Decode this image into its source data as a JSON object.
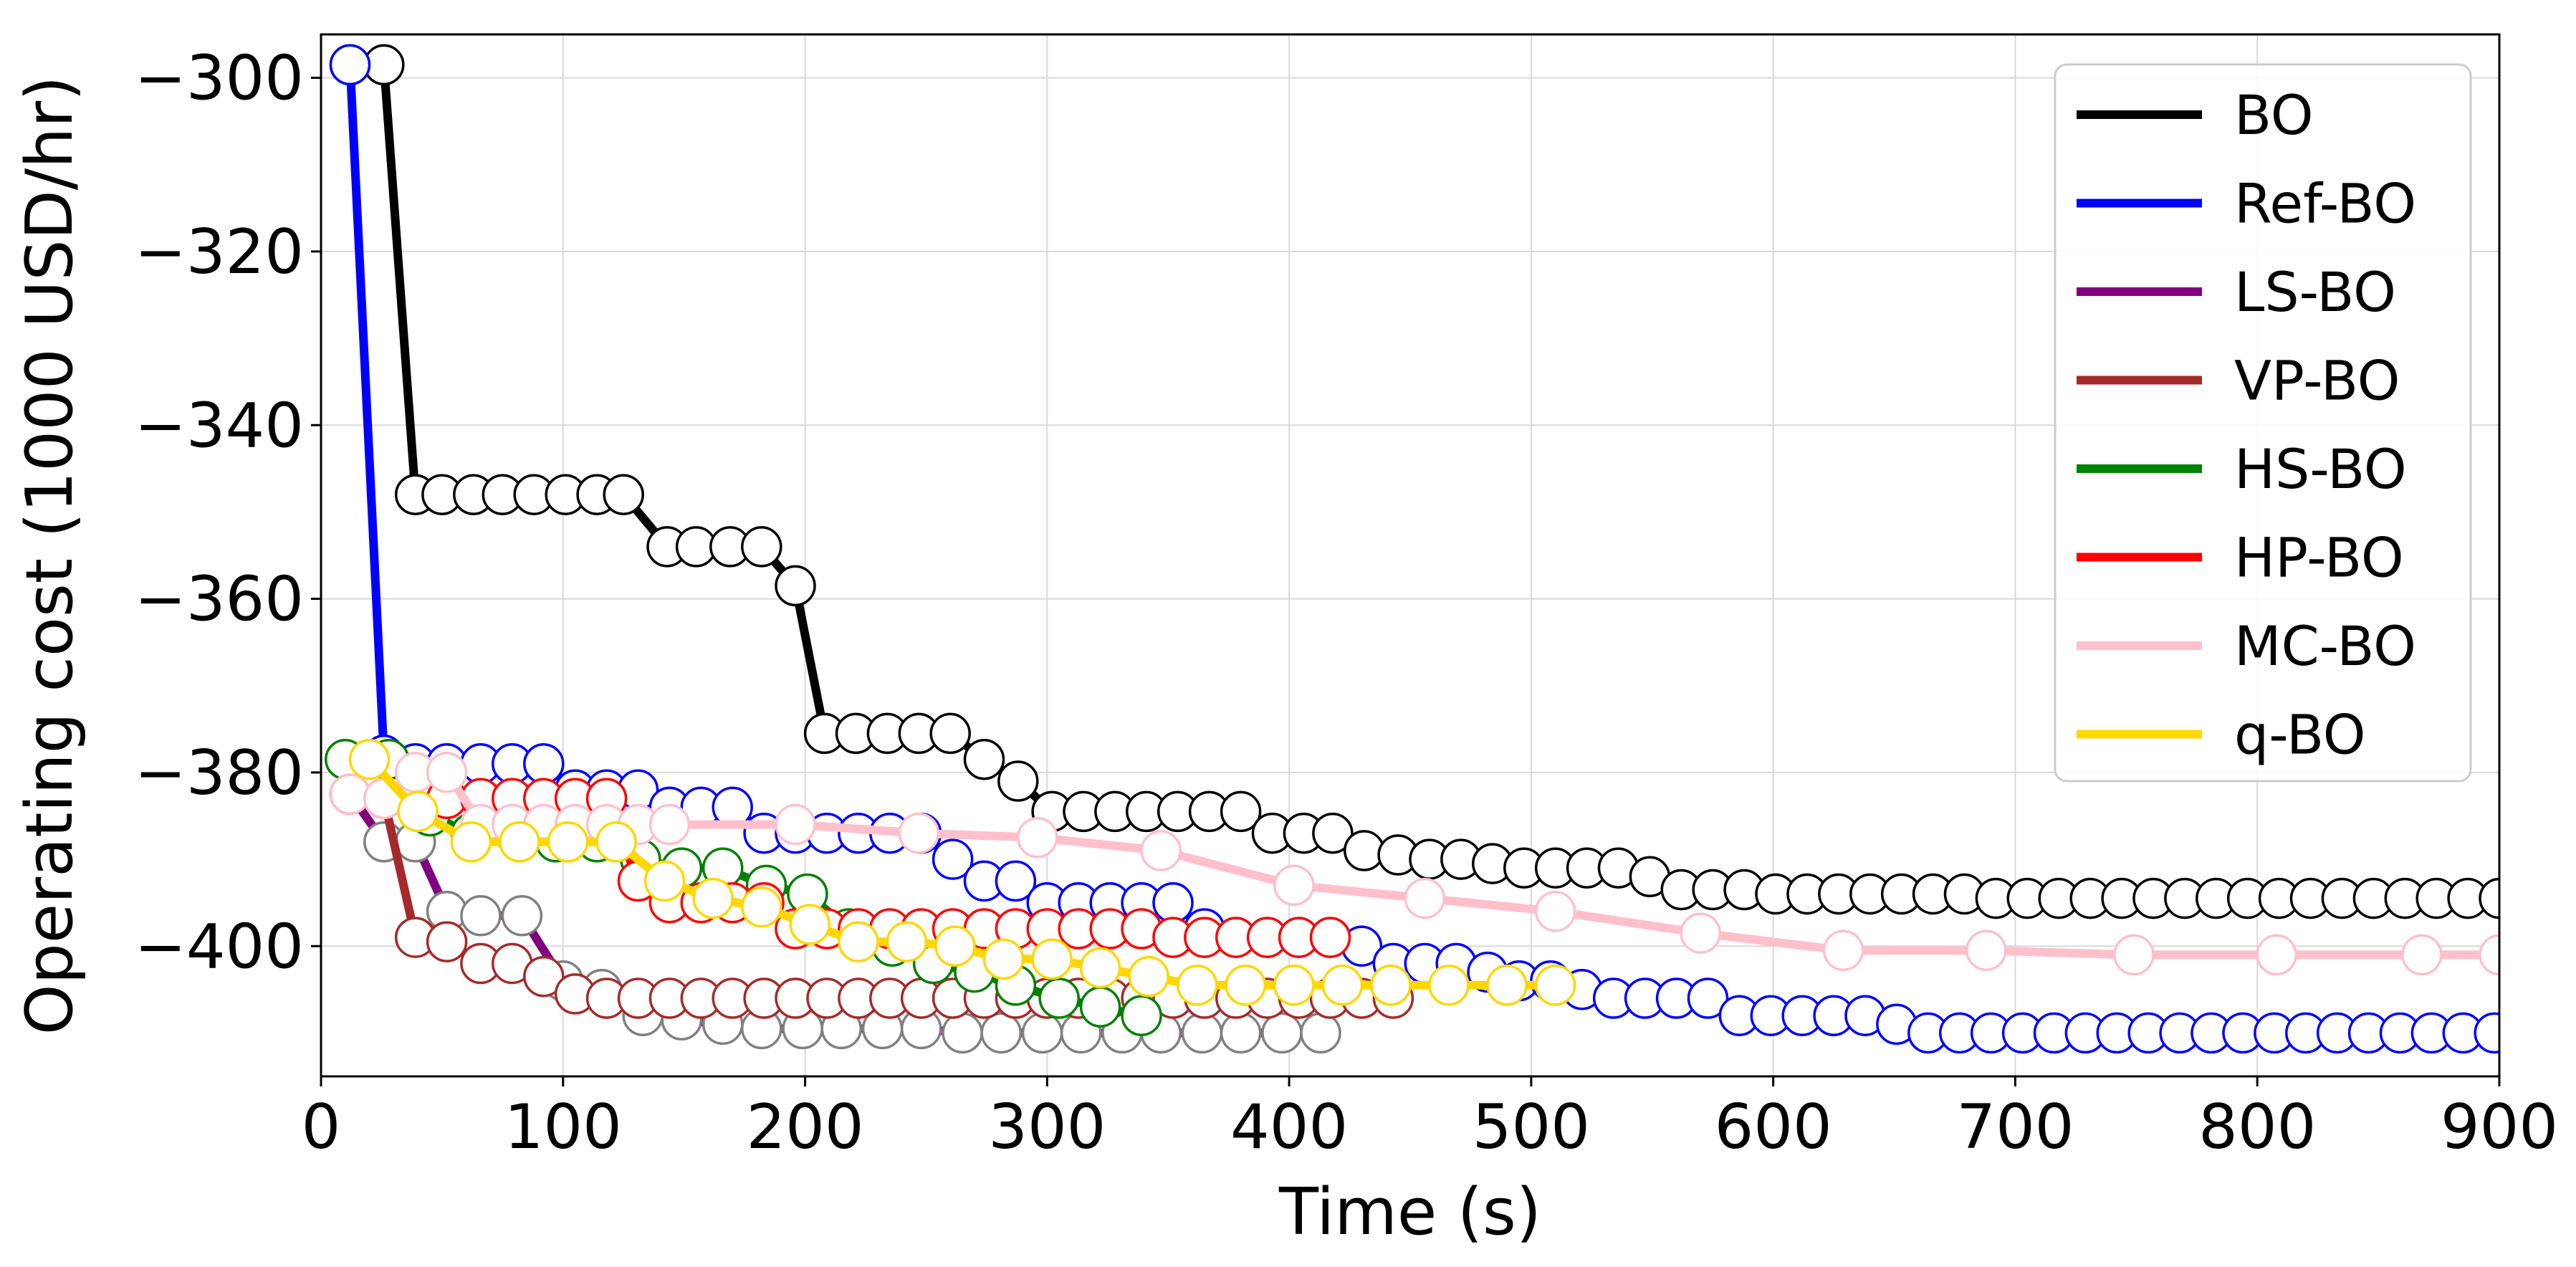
{
  "chart_data": {
    "type": "line",
    "title": "",
    "xlabel": "Time (s)",
    "ylabel": "Operating cost (1000 USD/hr)",
    "xlim": [
      0,
      900
    ],
    "ylim": [
      -415,
      -295
    ],
    "xticks": [
      0,
      100,
      200,
      300,
      400,
      500,
      600,
      700,
      800,
      900
    ],
    "yticks": [
      -300,
      -320,
      -340,
      -360,
      -380,
      -400
    ],
    "ytick_labels": [
      "−300",
      "−320",
      "−340",
      "−360",
      "−380",
      "−400"
    ],
    "grid": true,
    "legend": "top-right",
    "series": [
      {
        "name": "BO",
        "color": "#000000",
        "marker_edge": "#000000",
        "x": [
          12,
          26,
          39,
          50,
          63,
          75,
          88,
          101,
          114,
          125,
          143,
          155,
          169,
          182,
          196,
          208,
          221,
          234,
          247,
          260,
          274,
          288,
          302,
          315,
          328,
          341,
          354,
          367,
          380,
          393,
          406,
          418,
          431,
          445,
          458,
          471,
          484,
          497,
          510,
          523,
          536,
          549,
          562,
          575,
          588,
          601,
          614,
          627,
          640,
          653,
          666,
          679,
          692,
          705,
          718,
          731,
          744,
          757,
          770,
          783,
          796,
          809,
          822,
          835,
          848,
          861,
          874,
          887,
          900
        ],
        "y": [
          -298.5,
          -298.5,
          -348,
          -348,
          -348,
          -348,
          -348,
          -348,
          -348,
          -348,
          -354,
          -354,
          -354,
          -354,
          -358.5,
          -375.5,
          -375.5,
          -375.5,
          -375.5,
          -375.5,
          -378.5,
          -381,
          -384.5,
          -384.5,
          -384.5,
          -384.5,
          -384.5,
          -384.5,
          -384.5,
          -387,
          -387,
          -387,
          -389,
          -389.5,
          -390,
          -390,
          -390.5,
          -391,
          -391,
          -391,
          -391,
          -392,
          -393.5,
          -393.5,
          -393.5,
          -394,
          -394,
          -394,
          -394,
          -394,
          -394,
          -394,
          -394.5,
          -394.5,
          -394.5,
          -394.5,
          -394.5,
          -394.5,
          -394.5,
          -394.5,
          -394.5,
          -394.5,
          -394.5,
          -394.5,
          -394.5,
          -394.5,
          -394.5,
          -394.5,
          -394.5
        ]
      },
      {
        "name": "Ref-BO",
        "color": "#0000ff",
        "marker_edge": "#0000ff",
        "x": [
          12,
          26,
          39,
          52,
          66,
          79,
          92,
          105,
          118,
          131,
          144,
          157,
          170,
          183,
          196,
          209,
          222,
          235,
          248,
          261,
          274,
          287,
          300,
          313,
          326,
          339,
          352,
          365,
          378,
          391,
          404,
          417,
          430,
          443,
          456,
          469,
          482,
          495,
          508,
          521,
          534,
          547,
          560,
          573,
          586,
          599,
          612,
          625,
          638,
          651,
          664,
          677,
          690,
          703,
          716,
          729,
          742,
          755,
          768,
          781,
          794,
          807,
          820,
          833,
          846,
          859,
          872,
          885,
          898
        ],
        "y": [
          -298.5,
          -378,
          -379,
          -379,
          -379,
          -379,
          -379,
          -382,
          -382,
          -382,
          -384,
          -384,
          -384,
          -387,
          -387,
          -387,
          -387,
          -387,
          -387,
          -390,
          -392.5,
          -392.5,
          -395,
          -395,
          -395,
          -395,
          -395,
          -398,
          -399,
          -399,
          -399,
          -399,
          -400,
          -402,
          -402,
          -402,
          -403,
          -404,
          -404,
          -405,
          -406,
          -406,
          -406,
          -406,
          -408,
          -408,
          -408,
          -408,
          -408,
          -409,
          -410,
          -410,
          -410,
          -410,
          -410,
          -410,
          -410,
          -410,
          -410,
          -410,
          -410,
          -410,
          -410,
          -410,
          -410,
          -410,
          -410,
          -410,
          -410
        ]
      },
      {
        "name": "LS-BO",
        "color": "#800080",
        "marker_edge": "#808080",
        "x": [
          12,
          26,
          39,
          52,
          66,
          83,
          100,
          116,
          133,
          149,
          166,
          182,
          199,
          215,
          232,
          248,
          265,
          281,
          298,
          314,
          331,
          347,
          364,
          380,
          397,
          413
        ],
        "y": [
          -382.5,
          -388,
          -388,
          -396,
          -396.5,
          -396.5,
          -404,
          -405,
          -408,
          -408.5,
          -409,
          -409.5,
          -409.5,
          -409.5,
          -409.5,
          -409.5,
          -410,
          -410,
          -410,
          -410,
          -410,
          -410,
          -410,
          -410,
          -410,
          -410
        ]
      },
      {
        "name": "VP-BO",
        "color": "#a52a2a",
        "marker_edge": "#a52a2a",
        "x": [
          12,
          26,
          39,
          52,
          66,
          79,
          92,
          105,
          118,
          131,
          144,
          157,
          170,
          183,
          196,
          209,
          222,
          235,
          248,
          261,
          274,
          287,
          300,
          313,
          326,
          339,
          352,
          365,
          378,
          391,
          404,
          417,
          430,
          443
        ],
        "y": [
          -382.5,
          -383,
          -399,
          -399.5,
          -402,
          -402,
          -403.5,
          -405.5,
          -406,
          -406,
          -406,
          -406,
          -406,
          -406,
          -406,
          -406,
          -406,
          -406,
          -406,
          -406,
          -406,
          -406,
          -406,
          -406,
          -406,
          -406,
          -406,
          -406,
          -406,
          -406,
          -406,
          -406,
          -406,
          -406
        ]
      },
      {
        "name": "HS-BO",
        "color": "#008000",
        "marker_edge": "#008000",
        "x": [
          10,
          28,
          45,
          62,
          80,
          97,
          114,
          132,
          149,
          166,
          184,
          201,
          218,
          236,
          253,
          270,
          287,
          305,
          322,
          339
        ],
        "y": [
          -378.5,
          -378.5,
          -385,
          -387,
          -387,
          -388,
          -388,
          -390,
          -391,
          -391,
          -393,
          -394,
          -398,
          -400,
          -402,
          -403,
          -404.5,
          -406,
          -407,
          -408
        ]
      },
      {
        "name": "HP-BO",
        "color": "#ff0000",
        "marker_edge": "#ff0000",
        "x": [
          12,
          26,
          39,
          52,
          66,
          79,
          92,
          105,
          118,
          131,
          144,
          157,
          170,
          183,
          196,
          209,
          222,
          235,
          248,
          261,
          274,
          287,
          300,
          313,
          326,
          339,
          352,
          365,
          378,
          391,
          404,
          417
        ],
        "y": [
          -382.5,
          -383,
          -383,
          -383,
          -383,
          -383,
          -383,
          -383,
          -383,
          -392.5,
          -395,
          -395,
          -395,
          -395,
          -398,
          -398,
          -398,
          -398,
          -398,
          -398,
          -398,
          -398,
          -398,
          -398,
          -398,
          -398,
          -399,
          -399,
          -399,
          -399,
          -399,
          -399
        ]
      },
      {
        "name": "MC-BO",
        "color": "#ffc0cb",
        "marker_edge": "#ffc0cb",
        "x": [
          12,
          26,
          39,
          52,
          66,
          79,
          92,
          105,
          118,
          131,
          144,
          196,
          247,
          296,
          347,
          402,
          456,
          510,
          570,
          629,
          688,
          749,
          808,
          868,
          900
        ],
        "y": [
          -382.5,
          -383,
          -380,
          -380,
          -386,
          -386,
          -386,
          -386,
          -386,
          -386,
          -386,
          -386,
          -387,
          -387.5,
          -389,
          -393,
          -394.5,
          -396,
          -398.5,
          -400.5,
          -400.5,
          -401,
          -401,
          -401,
          -401
        ]
      },
      {
        "name": "q-BO",
        "color": "#ffd700",
        "marker_edge": "#ffd700",
        "x": [
          20,
          40,
          62,
          82,
          102,
          122,
          142,
          162,
          182,
          202,
          222,
          242,
          262,
          282,
          302,
          322,
          342,
          362,
          382,
          402,
          422,
          442,
          466,
          490,
          510
        ],
        "y": [
          -378.5,
          -384.5,
          -388,
          -388,
          -388,
          -388,
          -392.5,
          -394.5,
          -395.5,
          -397.5,
          -399.5,
          -399.5,
          -400,
          -401.5,
          -401.5,
          -402.5,
          -403.5,
          -404.5,
          -404.5,
          -404.5,
          -404.5,
          -404.5,
          -404.5,
          -404.5,
          -404.5
        ]
      }
    ]
  }
}
